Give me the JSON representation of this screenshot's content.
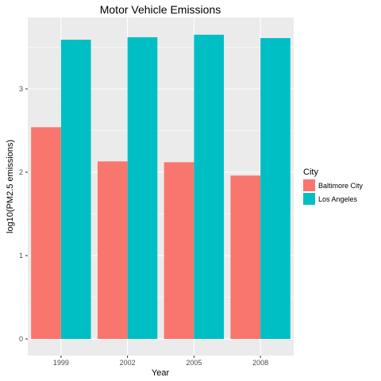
{
  "chart_data": {
    "type": "bar",
    "title": "Motor Vehicle Emissions",
    "xlabel": "Year",
    "ylabel": "log10(PM2.5 emissions)",
    "categories": [
      "1999",
      "2002",
      "2005",
      "2008"
    ],
    "series": [
      {
        "name": "Baltimore City",
        "color": "#F8766D",
        "values": [
          2.54,
          2.13,
          2.12,
          1.96
        ]
      },
      {
        "name": "Los Angeles",
        "color": "#00BFC4",
        "values": [
          3.59,
          3.62,
          3.65,
          3.61
        ]
      }
    ],
    "ylim": [
      0,
      3.8
    ],
    "yticks": [
      0,
      1,
      2,
      3
    ],
    "legend": {
      "title": "City",
      "position": "right"
    },
    "grid": true,
    "panel_background": "#EBEBEB",
    "grid_color": "#FFFFFF"
  }
}
